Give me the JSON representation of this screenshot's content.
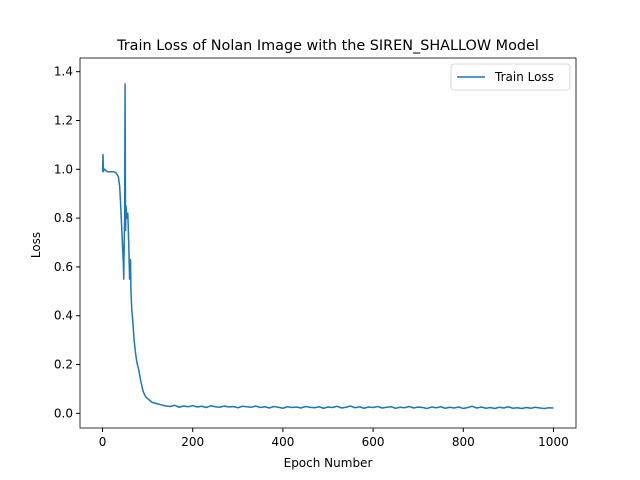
{
  "chart_data": {
    "type": "line",
    "title": "Train Loss of Nolan Image with the SIREN_SHALLOW Model",
    "xlabel": "Epoch Number",
    "ylabel": "Loss",
    "x": [
      0,
      1,
      2,
      3,
      5,
      10,
      15,
      20,
      25,
      30,
      35,
      38,
      40,
      42,
      44,
      46,
      47,
      48,
      49,
      50,
      51,
      52,
      54,
      56,
      58,
      60,
      62,
      63,
      65,
      67,
      70,
      73,
      76,
      80,
      85,
      90,
      95,
      100,
      110,
      120,
      130,
      140,
      150,
      160,
      170,
      180,
      190,
      200,
      210,
      220,
      230,
      240,
      250,
      260,
      270,
      280,
      290,
      300,
      310,
      320,
      330,
      340,
      350,
      360,
      370,
      380,
      390,
      400,
      410,
      420,
      430,
      440,
      450,
      460,
      470,
      480,
      490,
      500,
      510,
      520,
      530,
      540,
      550,
      560,
      570,
      580,
      590,
      600,
      610,
      620,
      630,
      640,
      650,
      660,
      670,
      680,
      690,
      700,
      710,
      720,
      730,
      740,
      750,
      760,
      770,
      780,
      790,
      800,
      810,
      820,
      830,
      840,
      850,
      860,
      870,
      880,
      890,
      900,
      910,
      920,
      930,
      940,
      950,
      960,
      970,
      980,
      990,
      1000
    ],
    "series": [
      {
        "name": "Train Loss",
        "color": "#1f77b4",
        "values": [
          0.99,
          1.06,
          0.99,
          1.0,
          1.0,
          0.99,
          0.99,
          0.99,
          0.99,
          0.985,
          0.97,
          0.93,
          0.86,
          0.78,
          0.7,
          0.62,
          0.55,
          0.7,
          0.8,
          1.35,
          0.75,
          0.85,
          0.8,
          0.82,
          0.7,
          0.55,
          0.63,
          0.5,
          0.42,
          0.38,
          0.3,
          0.25,
          0.21,
          0.18,
          0.13,
          0.09,
          0.07,
          0.06,
          0.045,
          0.04,
          0.035,
          0.03,
          0.028,
          0.033,
          0.025,
          0.03,
          0.027,
          0.032,
          0.026,
          0.029,
          0.024,
          0.031,
          0.027,
          0.025,
          0.03,
          0.026,
          0.028,
          0.023,
          0.029,
          0.027,
          0.025,
          0.03,
          0.024,
          0.027,
          0.022,
          0.028,
          0.025,
          0.021,
          0.027,
          0.024,
          0.026,
          0.022,
          0.028,
          0.025,
          0.023,
          0.027,
          0.021,
          0.026,
          0.024,
          0.029,
          0.022,
          0.025,
          0.03,
          0.023,
          0.027,
          0.021,
          0.026,
          0.024,
          0.028,
          0.022,
          0.025,
          0.027,
          0.021,
          0.025,
          0.023,
          0.028,
          0.022,
          0.026,
          0.024,
          0.02,
          0.026,
          0.023,
          0.027,
          0.021,
          0.025,
          0.022,
          0.026,
          0.02,
          0.024,
          0.029,
          0.022,
          0.026,
          0.021,
          0.024,
          0.02,
          0.025,
          0.022,
          0.027,
          0.021,
          0.023,
          0.02,
          0.024,
          0.021,
          0.025,
          0.022,
          0.02,
          0.023,
          0.022
        ]
      }
    ],
    "xlim": [
      -50,
      1050
    ],
    "ylim": [
      -0.06,
      1.456
    ],
    "xticks": [
      0,
      200,
      400,
      600,
      800,
      1000
    ],
    "yticks": [
      {
        "value": 0,
        "label": "0.0"
      },
      0.2,
      0.4,
      0.6,
      0.8,
      {
        "value": 1,
        "label": "1.0"
      },
      1.2,
      1.4
    ],
    "legend": "upper right"
  }
}
